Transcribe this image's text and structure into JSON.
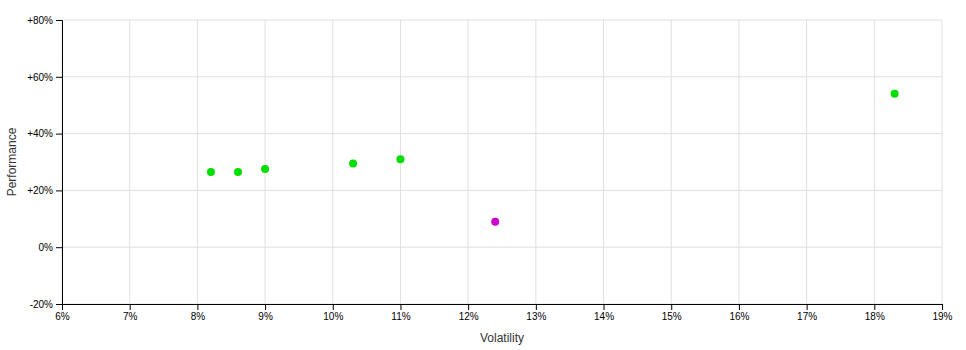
{
  "chart_data": {
    "type": "scatter",
    "xlabel": "Volatility",
    "ylabel": "Performance",
    "xlim": [
      0.06,
      0.19
    ],
    "ylim": [
      -0.2,
      0.8
    ],
    "xticks": [
      {
        "value": 0.06,
        "label": "6%"
      },
      {
        "value": 0.07,
        "label": "7%"
      },
      {
        "value": 0.08,
        "label": "8%"
      },
      {
        "value": 0.09,
        "label": "9%"
      },
      {
        "value": 0.1,
        "label": "10%"
      },
      {
        "value": 0.11,
        "label": "11%"
      },
      {
        "value": 0.12,
        "label": "12%"
      },
      {
        "value": 0.13,
        "label": "13%"
      },
      {
        "value": 0.14,
        "label": "14%"
      },
      {
        "value": 0.15,
        "label": "15%"
      },
      {
        "value": 0.16,
        "label": "16%"
      },
      {
        "value": 0.17,
        "label": "17%"
      },
      {
        "value": 0.18,
        "label": "18%"
      },
      {
        "value": 0.19,
        "label": "19%"
      }
    ],
    "yticks": [
      {
        "value": -0.2,
        "label": "-20%"
      },
      {
        "value": 0.0,
        "label": "0%"
      },
      {
        "value": 0.2,
        "label": "+20%"
      },
      {
        "value": 0.4,
        "label": "+40%"
      },
      {
        "value": 0.6,
        "label": "+60%"
      },
      {
        "value": 0.8,
        "label": "+80%"
      }
    ],
    "grid": true,
    "series": [
      {
        "color": "#00dd00",
        "x": [
          0.082,
          0.086,
          0.09,
          0.103,
          0.11,
          0.183
        ],
        "values": [
          0.265,
          0.265,
          0.275,
          0.295,
          0.31,
          0.54
        ]
      },
      {
        "color": "#cc00cc",
        "x": [
          0.124
        ],
        "values": [
          0.09
        ]
      }
    ]
  }
}
